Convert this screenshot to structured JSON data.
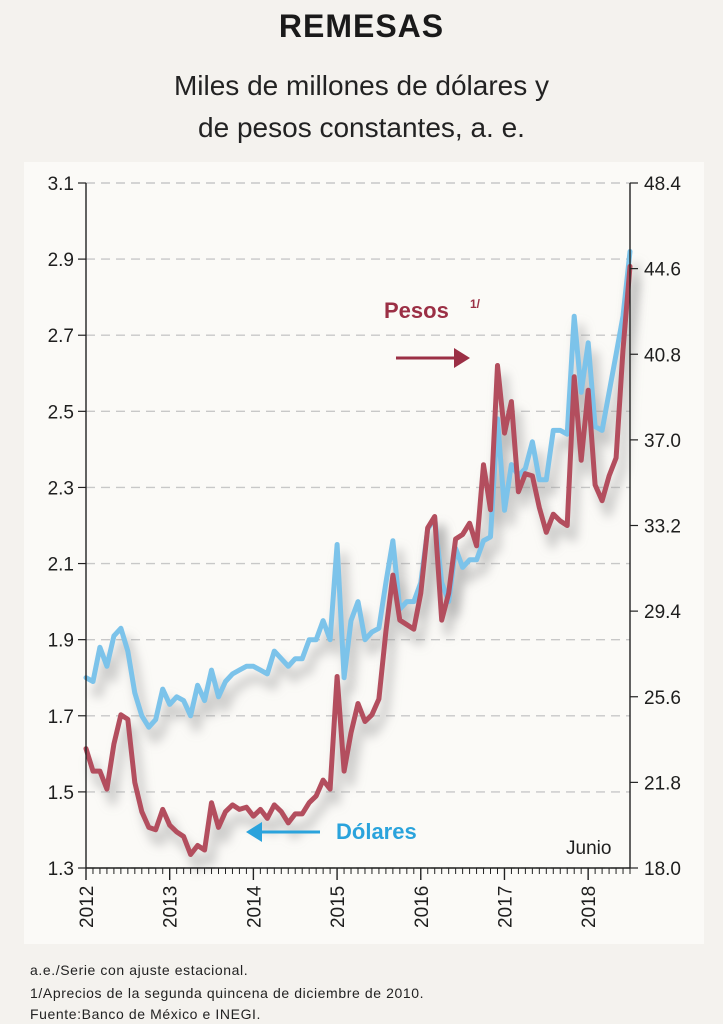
{
  "header": {
    "title": "REMESAS",
    "subtitle_line1": "Miles de millones de dólares y",
    "subtitle_line2": "de pesos constantes, a. e."
  },
  "footnotes": [
    "a.e./Serie con ajuste estacional.",
    "1/Aprecios de la segunda quincena de diciembre de 2010.",
    "Fuente:Banco de México e INEGI."
  ],
  "colors": {
    "dolares": "#7cc3ea",
    "pesos": "#b34e5e",
    "pesos_label": "#9b2f45",
    "dolares_label": "#2aa3dc",
    "grid": "#c8c8c8"
  },
  "chart_data": {
    "type": "line",
    "x_tick_labels": [
      "2012",
      "2013",
      "2014",
      "2015",
      "2016",
      "2017",
      "2018"
    ],
    "x_range": [
      2012.0,
      2018.5
    ],
    "left_axis": {
      "ticks": [
        "3.1",
        "2.9",
        "2.7",
        "2.5",
        "2.3",
        "2.1",
        "1.9",
        "1.7",
        "1.5",
        "1.3"
      ],
      "range": [
        1.3,
        3.1
      ]
    },
    "right_axis": {
      "ticks": [
        "48.4",
        "44.6",
        "40.8",
        "37.0",
        "33.2",
        "29.4",
        "25.6",
        "21.8",
        "18.0"
      ],
      "range": [
        18.0,
        48.4
      ]
    },
    "grid": true,
    "annotations": {
      "pesos_label": "Pesos",
      "pesos_superscript": "1/",
      "dolares_label": "Dólares",
      "end_label": "Junio"
    },
    "series": [
      {
        "name": "Dólares",
        "axis": "left",
        "values": [
          1.8,
          1.79,
          1.88,
          1.83,
          1.91,
          1.93,
          1.87,
          1.76,
          1.7,
          1.67,
          1.69,
          1.77,
          1.73,
          1.75,
          1.74,
          1.7,
          1.78,
          1.74,
          1.82,
          1.75,
          1.79,
          1.81,
          1.82,
          1.83,
          1.83,
          1.82,
          1.81,
          1.87,
          1.85,
          1.83,
          1.85,
          1.85,
          1.9,
          1.9,
          1.95,
          1.9,
          2.15,
          1.8,
          1.95,
          2.0,
          1.9,
          1.92,
          1.93,
          2.05,
          2.16,
          1.98,
          2.0,
          2.0,
          2.05,
          2.19,
          2.22,
          2.05,
          2.0,
          2.14,
          2.09,
          2.11,
          2.11,
          2.16,
          2.17,
          2.48,
          2.24,
          2.36,
          2.33,
          2.35,
          2.42,
          2.32,
          2.32,
          2.45,
          2.45,
          2.44,
          2.75,
          2.55,
          2.68,
          2.46,
          2.45,
          2.55,
          2.65,
          2.75,
          2.92
        ]
      },
      {
        "name": "Pesos",
        "axis": "right",
        "values": [
          23.3,
          22.3,
          22.3,
          21.5,
          23.5,
          24.8,
          24.6,
          21.8,
          20.5,
          19.8,
          19.7,
          20.6,
          19.9,
          19.6,
          19.4,
          18.6,
          19.0,
          18.8,
          20.9,
          19.8,
          20.5,
          20.8,
          20.6,
          20.7,
          20.3,
          20.6,
          20.2,
          20.8,
          20.5,
          20.0,
          20.4,
          20.4,
          20.9,
          21.2,
          21.9,
          21.5,
          26.5,
          22.3,
          24.0,
          25.3,
          24.5,
          24.8,
          25.5,
          28.5,
          31.0,
          29.0,
          28.8,
          28.6,
          30.2,
          33.1,
          33.6,
          29.0,
          30.2,
          32.6,
          32.8,
          33.3,
          32.3,
          35.9,
          33.9,
          40.3,
          37.3,
          38.7,
          34.7,
          35.5,
          35.4,
          34.0,
          32.9,
          33.7,
          33.4,
          33.2,
          39.8,
          36.1,
          39.2,
          35.0,
          34.3,
          35.4,
          36.2,
          41.0,
          44.7
        ]
      }
    ]
  }
}
